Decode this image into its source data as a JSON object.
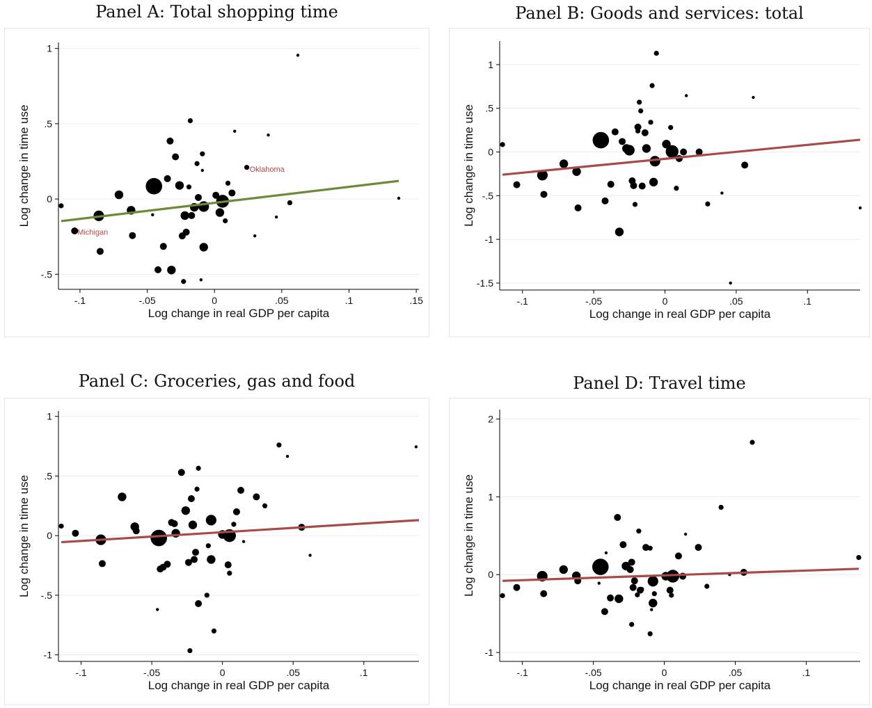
{
  "chart_data": [
    {
      "type": "scatter",
      "title": "Panel A: Total shopping time",
      "xlabel": "Log change in real GDP per capita",
      "ylabel": "Log change in time use",
      "xlim": [
        -0.116,
        0.152
      ],
      "ylim": [
        -0.6,
        1.04
      ],
      "xticks": [
        -0.1,
        -0.05,
        0,
        0.05,
        0.1,
        0.15
      ],
      "xtick_labels": [
        "-.1",
        "-.05",
        "0",
        ".05",
        ".1",
        ".15"
      ],
      "yticks": [
        -0.5,
        0,
        0.5,
        1
      ],
      "ytick_labels": [
        "-.5",
        "0",
        ".5",
        "1"
      ],
      "grid": true,
      "fit_color": "#6b8a3a",
      "fit": {
        "x": [
          -0.114,
          0.137
        ],
        "y": [
          -0.147,
          0.12
        ]
      },
      "annotations": [
        {
          "text": "Oklahoma",
          "x": 0.024,
          "y": 0.2
        },
        {
          "text": "Michigan",
          "x": -0.104,
          "y": -0.22
        }
      ],
      "points": [
        {
          "x": -0.114,
          "y": -0.045,
          "w": 1
        },
        {
          "x": -0.104,
          "y": -0.212,
          "w": 2
        },
        {
          "x": -0.086,
          "y": -0.112,
          "w": 4
        },
        {
          "x": -0.085,
          "y": -0.348,
          "w": 2
        },
        {
          "x": -0.071,
          "y": 0.028,
          "w": 3
        },
        {
          "x": -0.062,
          "y": -0.075,
          "w": 3
        },
        {
          "x": -0.061,
          "y": -0.243,
          "w": 2
        },
        {
          "x": -0.046,
          "y": -0.105,
          "w": 0
        },
        {
          "x": -0.045,
          "y": 0.085,
          "w": 7
        },
        {
          "x": -0.042,
          "y": -0.47,
          "w": 2
        },
        {
          "x": -0.038,
          "y": -0.315,
          "w": 2
        },
        {
          "x": -0.035,
          "y": 0.135,
          "w": 2
        },
        {
          "x": -0.033,
          "y": 0.385,
          "w": 2
        },
        {
          "x": -0.032,
          "y": -0.472,
          "w": 3
        },
        {
          "x": -0.029,
          "y": 0.28,
          "w": 2
        },
        {
          "x": -0.026,
          "y": 0.09,
          "w": 3
        },
        {
          "x": -0.024,
          "y": -0.245,
          "w": 2
        },
        {
          "x": -0.023,
          "y": -0.548,
          "w": 1
        },
        {
          "x": -0.022,
          "y": -0.11,
          "w": 3
        },
        {
          "x": -0.021,
          "y": -0.22,
          "w": 2
        },
        {
          "x": -0.019,
          "y": 0.08,
          "w": 1
        },
        {
          "x": -0.018,
          "y": 0.52,
          "w": 1
        },
        {
          "x": -0.017,
          "y": -0.11,
          "w": 2
        },
        {
          "x": -0.015,
          "y": -0.055,
          "w": 3
        },
        {
          "x": -0.013,
          "y": 0.235,
          "w": 1
        },
        {
          "x": -0.012,
          "y": 0.01,
          "w": 2
        },
        {
          "x": -0.01,
          "y": -0.537,
          "w": 0
        },
        {
          "x": -0.009,
          "y": 0.19,
          "w": 0
        },
        {
          "x": -0.009,
          "y": 0.3,
          "w": 1
        },
        {
          "x": -0.008,
          "y": -0.32,
          "w": 3
        },
        {
          "x": -0.008,
          "y": -0.05,
          "w": 4
        },
        {
          "x": 0.001,
          "y": 0.025,
          "w": 2
        },
        {
          "x": 0.004,
          "y": -0.09,
          "w": 3
        },
        {
          "x": 0.006,
          "y": -0.015,
          "w": 5
        },
        {
          "x": 0.008,
          "y": -0.145,
          "w": 1
        },
        {
          "x": 0.01,
          "y": 0.105,
          "w": 1
        },
        {
          "x": 0.013,
          "y": 0.04,
          "w": 2
        },
        {
          "x": 0.015,
          "y": 0.45,
          "w": 0
        },
        {
          "x": 0.024,
          "y": 0.21,
          "w": 1
        },
        {
          "x": 0.03,
          "y": -0.245,
          "w": 0
        },
        {
          "x": 0.04,
          "y": 0.425,
          "w": 0
        },
        {
          "x": 0.046,
          "y": -0.12,
          "w": 0
        },
        {
          "x": 0.056,
          "y": -0.025,
          "w": 1
        },
        {
          "x": 0.062,
          "y": 0.955,
          "w": 0
        },
        {
          "x": 0.137,
          "y": 0.005,
          "w": 0
        }
      ]
    },
    {
      "type": "scatter",
      "title": "Panel B: Goods and services: total",
      "xlabel": "Log change in real GDP per capita",
      "ylabel": "Log change in time use",
      "xlim": [
        -0.116,
        0.137
      ],
      "ylim": [
        -1.58,
        1.27
      ],
      "xticks": [
        -0.1,
        -0.05,
        0,
        0.05,
        0.1
      ],
      "xtick_labels": [
        "-.1",
        "-.05",
        "0",
        ".05",
        ".1"
      ],
      "yticks": [
        -1.5,
        -1,
        -0.5,
        0,
        0.5,
        1
      ],
      "ytick_labels": [
        "-1.5",
        "-1",
        "-.5",
        "0",
        ".5",
        "1"
      ],
      "grid": true,
      "fit_color": "#a84b48",
      "fit": {
        "x": [
          -0.114,
          0.137
        ],
        "y": [
          -0.26,
          0.14
        ]
      },
      "annotations": [],
      "points": [
        {
          "x": -0.114,
          "y": 0.085,
          "w": 1
        },
        {
          "x": -0.104,
          "y": -0.375,
          "w": 2
        },
        {
          "x": -0.086,
          "y": -0.265,
          "w": 4
        },
        {
          "x": -0.085,
          "y": -0.485,
          "w": 2
        },
        {
          "x": -0.071,
          "y": -0.135,
          "w": 3
        },
        {
          "x": -0.062,
          "y": -0.225,
          "w": 3
        },
        {
          "x": -0.061,
          "y": -0.64,
          "w": 2
        },
        {
          "x": -0.045,
          "y": 0.135,
          "w": 7
        },
        {
          "x": -0.042,
          "y": -0.56,
          "w": 2
        },
        {
          "x": -0.038,
          "y": -0.37,
          "w": 2
        },
        {
          "x": -0.035,
          "y": 0.23,
          "w": 2
        },
        {
          "x": -0.032,
          "y": -0.915,
          "w": 3
        },
        {
          "x": -0.03,
          "y": 0.12,
          "w": 2
        },
        {
          "x": -0.027,
          "y": 0.04,
          "w": 3
        },
        {
          "x": -0.025,
          "y": 0.02,
          "w": 4
        },
        {
          "x": -0.023,
          "y": -0.33,
          "w": 2
        },
        {
          "x": -0.022,
          "y": -0.385,
          "w": 2
        },
        {
          "x": -0.021,
          "y": -0.6,
          "w": 1
        },
        {
          "x": -0.019,
          "y": 0.285,
          "w": 2
        },
        {
          "x": -0.019,
          "y": 0.24,
          "w": 1
        },
        {
          "x": -0.018,
          "y": 0.57,
          "w": 1
        },
        {
          "x": -0.017,
          "y": 0.47,
          "w": 1
        },
        {
          "x": -0.016,
          "y": -0.39,
          "w": 2
        },
        {
          "x": -0.014,
          "y": 0.22,
          "w": 2
        },
        {
          "x": -0.013,
          "y": 0.04,
          "w": 3
        },
        {
          "x": -0.01,
          "y": 0.34,
          "w": 1
        },
        {
          "x": -0.009,
          "y": 0.76,
          "w": 1
        },
        {
          "x": -0.008,
          "y": -0.345,
          "w": 3
        },
        {
          "x": -0.007,
          "y": -0.105,
          "w": 4
        },
        {
          "x": -0.006,
          "y": 1.13,
          "w": 1
        },
        {
          "x": 0.001,
          "y": 0.09,
          "w": 3
        },
        {
          "x": 0.004,
          "y": 0.28,
          "w": 1
        },
        {
          "x": 0.005,
          "y": 0.005,
          "w": 5
        },
        {
          "x": 0.008,
          "y": -0.415,
          "w": 1
        },
        {
          "x": 0.01,
          "y": -0.075,
          "w": 2
        },
        {
          "x": 0.013,
          "y": 0.0,
          "w": 2
        },
        {
          "x": 0.015,
          "y": 0.645,
          "w": 0
        },
        {
          "x": 0.024,
          "y": 0.0,
          "w": 2
        },
        {
          "x": 0.03,
          "y": -0.595,
          "w": 1
        },
        {
          "x": 0.04,
          "y": -0.47,
          "w": 0
        },
        {
          "x": 0.046,
          "y": -1.5,
          "w": 0
        },
        {
          "x": 0.056,
          "y": -0.15,
          "w": 2
        },
        {
          "x": 0.062,
          "y": 0.625,
          "w": 0
        },
        {
          "x": 0.137,
          "y": -0.64,
          "w": 0
        }
      ]
    },
    {
      "type": "scatter",
      "title": "Panel C: Groceries, gas and food",
      "xlabel": "Log change in real GDP per capita",
      "ylabel": "Log change in time use",
      "xlim": [
        -0.116,
        0.139
      ],
      "ylim": [
        -1.055,
        1.045
      ],
      "xticks": [
        -0.1,
        -0.05,
        0,
        0.05,
        0.1
      ],
      "xtick_labels": [
        "-.1",
        "-.05",
        "0",
        ".05",
        ".1"
      ],
      "yticks": [
        -1,
        -0.5,
        0,
        0.5,
        1
      ],
      "ytick_labels": [
        "-1",
        "-.5",
        "0",
        ".5",
        "1"
      ],
      "grid": true,
      "fit_color": "#a84b48",
      "fit": {
        "x": [
          -0.114,
          0.139
        ],
        "y": [
          -0.055,
          0.13
        ]
      },
      "annotations": [],
      "points": [
        {
          "x": -0.114,
          "y": 0.08,
          "w": 1
        },
        {
          "x": -0.104,
          "y": 0.02,
          "w": 2
        },
        {
          "x": -0.086,
          "y": -0.035,
          "w": 4
        },
        {
          "x": -0.085,
          "y": -0.235,
          "w": 2
        },
        {
          "x": -0.071,
          "y": 0.325,
          "w": 3
        },
        {
          "x": -0.062,
          "y": 0.075,
          "w": 3
        },
        {
          "x": -0.061,
          "y": 0.04,
          "w": 2
        },
        {
          "x": -0.046,
          "y": -0.62,
          "w": 0
        },
        {
          "x": -0.045,
          "y": -0.02,
          "w": 7
        },
        {
          "x": -0.044,
          "y": -0.28,
          "w": 2
        },
        {
          "x": -0.042,
          "y": -0.265,
          "w": 2
        },
        {
          "x": -0.039,
          "y": -0.24,
          "w": 2
        },
        {
          "x": -0.036,
          "y": 0.11,
          "w": 2
        },
        {
          "x": -0.034,
          "y": 0.1,
          "w": 2
        },
        {
          "x": -0.033,
          "y": 0.02,
          "w": 3
        },
        {
          "x": -0.029,
          "y": 0.53,
          "w": 2
        },
        {
          "x": -0.026,
          "y": 0.21,
          "w": 3
        },
        {
          "x": -0.024,
          "y": -0.225,
          "w": 2
        },
        {
          "x": -0.023,
          "y": -0.965,
          "w": 1
        },
        {
          "x": -0.022,
          "y": 0.31,
          "w": 2
        },
        {
          "x": -0.021,
          "y": 0.09,
          "w": 3
        },
        {
          "x": -0.02,
          "y": -0.2,
          "w": 2
        },
        {
          "x": -0.019,
          "y": -0.14,
          "w": 2
        },
        {
          "x": -0.018,
          "y": 0.39,
          "w": 1
        },
        {
          "x": -0.017,
          "y": 0.565,
          "w": 1
        },
        {
          "x": -0.017,
          "y": -0.57,
          "w": 2
        },
        {
          "x": -0.011,
          "y": -0.5,
          "w": 1
        },
        {
          "x": -0.01,
          "y": -0.085,
          "w": 1
        },
        {
          "x": -0.008,
          "y": -0.2,
          "w": 3
        },
        {
          "x": -0.008,
          "y": 0.13,
          "w": 4
        },
        {
          "x": -0.006,
          "y": -0.8,
          "w": 1
        },
        {
          "x": 0.0,
          "y": 0.01,
          "w": 3
        },
        {
          "x": 0.004,
          "y": -0.245,
          "w": 2
        },
        {
          "x": 0.005,
          "y": 0.0,
          "w": 5
        },
        {
          "x": 0.005,
          "y": -0.315,
          "w": 1
        },
        {
          "x": 0.008,
          "y": 0.095,
          "w": 1
        },
        {
          "x": 0.01,
          "y": 0.2,
          "w": 2
        },
        {
          "x": 0.013,
          "y": 0.38,
          "w": 2
        },
        {
          "x": 0.015,
          "y": -0.05,
          "w": 0
        },
        {
          "x": 0.024,
          "y": 0.325,
          "w": 2
        },
        {
          "x": 0.03,
          "y": 0.25,
          "w": 1
        },
        {
          "x": 0.04,
          "y": 0.76,
          "w": 1
        },
        {
          "x": 0.046,
          "y": 0.665,
          "w": 0
        },
        {
          "x": 0.056,
          "y": 0.07,
          "w": 2
        },
        {
          "x": 0.062,
          "y": -0.165,
          "w": 0
        },
        {
          "x": 0.137,
          "y": 0.745,
          "w": 0
        }
      ]
    },
    {
      "type": "scatter",
      "title": "Panel D: Travel time",
      "xlabel": "Log change in real GDP per capita",
      "ylabel": "Log change in time use",
      "xlim": [
        -0.116,
        0.138
      ],
      "ylim": [
        -1.115,
        2.12
      ],
      "xticks": [
        -0.1,
        -0.05,
        0,
        0.05,
        0.1
      ],
      "xtick_labels": [
        "-.1",
        "-.05",
        "0",
        ".05",
        ".1"
      ],
      "yticks": [
        -1,
        0,
        1,
        2
      ],
      "ytick_labels": [
        "-1",
        "0",
        "1",
        "2"
      ],
      "grid": true,
      "fit_color": "#a84b48",
      "fit": {
        "x": [
          -0.114,
          0.137
        ],
        "y": [
          -0.08,
          0.075
        ]
      },
      "annotations": [],
      "points": [
        {
          "x": -0.114,
          "y": -0.27,
          "w": 1
        },
        {
          "x": -0.104,
          "y": -0.165,
          "w": 2
        },
        {
          "x": -0.086,
          "y": -0.02,
          "w": 4
        },
        {
          "x": -0.085,
          "y": -0.245,
          "w": 2
        },
        {
          "x": -0.071,
          "y": 0.065,
          "w": 3
        },
        {
          "x": -0.062,
          "y": -0.015,
          "w": 3
        },
        {
          "x": -0.061,
          "y": -0.08,
          "w": 2
        },
        {
          "x": -0.046,
          "y": -0.11,
          "w": 0
        },
        {
          "x": -0.045,
          "y": 0.1,
          "w": 7
        },
        {
          "x": -0.042,
          "y": -0.475,
          "w": 2
        },
        {
          "x": -0.041,
          "y": 0.28,
          "w": 0
        },
        {
          "x": -0.038,
          "y": -0.3,
          "w": 2
        },
        {
          "x": -0.033,
          "y": 0.735,
          "w": 2
        },
        {
          "x": -0.032,
          "y": -0.31,
          "w": 3
        },
        {
          "x": -0.029,
          "y": 0.385,
          "w": 2
        },
        {
          "x": -0.027,
          "y": 0.11,
          "w": 3
        },
        {
          "x": -0.024,
          "y": 0.065,
          "w": 2
        },
        {
          "x": -0.023,
          "y": 0.16,
          "w": 2
        },
        {
          "x": -0.023,
          "y": -0.64,
          "w": 1
        },
        {
          "x": -0.022,
          "y": -0.165,
          "w": 2
        },
        {
          "x": -0.021,
          "y": -0.08,
          "w": 2
        },
        {
          "x": -0.019,
          "y": -0.26,
          "w": 1
        },
        {
          "x": -0.018,
          "y": 0.56,
          "w": 1
        },
        {
          "x": -0.017,
          "y": -0.2,
          "w": 2
        },
        {
          "x": -0.016,
          "y": -0.19,
          "w": 1
        },
        {
          "x": -0.013,
          "y": 0.35,
          "w": 2
        },
        {
          "x": -0.01,
          "y": 0.34,
          "w": 1
        },
        {
          "x": -0.01,
          "y": -0.76,
          "w": 1
        },
        {
          "x": -0.009,
          "y": -0.45,
          "w": 0
        },
        {
          "x": -0.008,
          "y": -0.365,
          "w": 3
        },
        {
          "x": -0.008,
          "y": -0.085,
          "w": 4
        },
        {
          "x": -0.007,
          "y": -0.245,
          "w": 1
        },
        {
          "x": 0.001,
          "y": -0.02,
          "w": 3
        },
        {
          "x": 0.004,
          "y": -0.2,
          "w": 2
        },
        {
          "x": 0.005,
          "y": -0.265,
          "w": 1
        },
        {
          "x": 0.006,
          "y": -0.02,
          "w": 5
        },
        {
          "x": 0.01,
          "y": 0.24,
          "w": 2
        },
        {
          "x": 0.013,
          "y": -0.02,
          "w": 2
        },
        {
          "x": 0.015,
          "y": 0.52,
          "w": 0
        },
        {
          "x": 0.024,
          "y": 0.35,
          "w": 2
        },
        {
          "x": 0.03,
          "y": -0.15,
          "w": 1
        },
        {
          "x": 0.04,
          "y": 0.865,
          "w": 1
        },
        {
          "x": 0.046,
          "y": 0.0,
          "w": 0
        },
        {
          "x": 0.056,
          "y": 0.03,
          "w": 2
        },
        {
          "x": 0.062,
          "y": 1.7,
          "w": 1
        },
        {
          "x": 0.137,
          "y": 0.22,
          "w": 1
        }
      ]
    }
  ]
}
